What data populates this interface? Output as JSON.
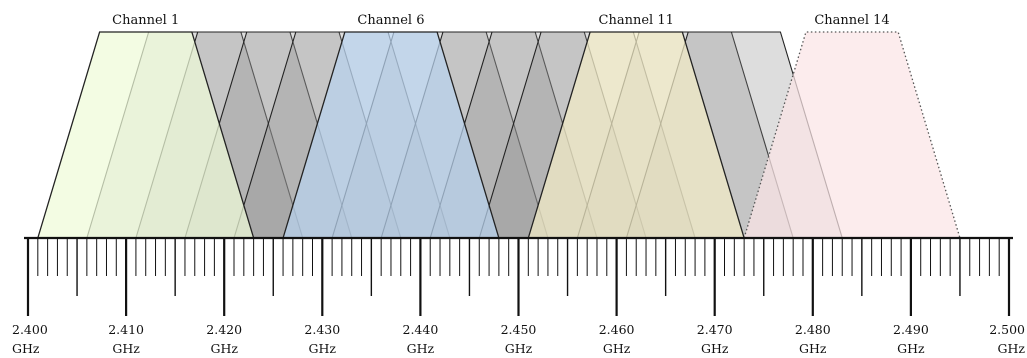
{
  "axis": {
    "min": 2.4,
    "max": 2.5,
    "minor_step": 0.001,
    "mid_step": 0.005,
    "major_step": 0.01,
    "unit": "GHz",
    "major_labels": [
      "2.400",
      "2.410",
      "2.420",
      "2.430",
      "2.440",
      "2.450",
      "2.460",
      "2.470",
      "2.480",
      "2.490",
      "2.500"
    ]
  },
  "trapezoid": {
    "base_half_width_ghz": 0.011,
    "top_half_width_ghz": 0.0047
  },
  "labeled_channels": [
    {
      "label": "Channel 1",
      "center_ghz": 2.412,
      "fill": "#eefbd8",
      "stroke": "#222222",
      "dotted": false
    },
    {
      "label": "Channel 6",
      "center_ghz": 2.437,
      "fill": "#b9d3ef",
      "stroke": "#222222",
      "dotted": false
    },
    {
      "label": "Channel 11",
      "center_ghz": 2.462,
      "fill": "#f3ebc6",
      "stroke": "#222222",
      "dotted": false
    },
    {
      "label": "Channel 14",
      "center_ghz": 2.484,
      "fill": "#fbe4e6",
      "stroke": "#555555",
      "dotted": true
    }
  ],
  "background_channels": {
    "centers_ghz": [
      2.417,
      2.422,
      2.427,
      2.432,
      2.442,
      2.447,
      2.452,
      2.457,
      2.467,
      2.472
    ],
    "fill": "#8f8f8f",
    "opacity": 0.3
  }
}
